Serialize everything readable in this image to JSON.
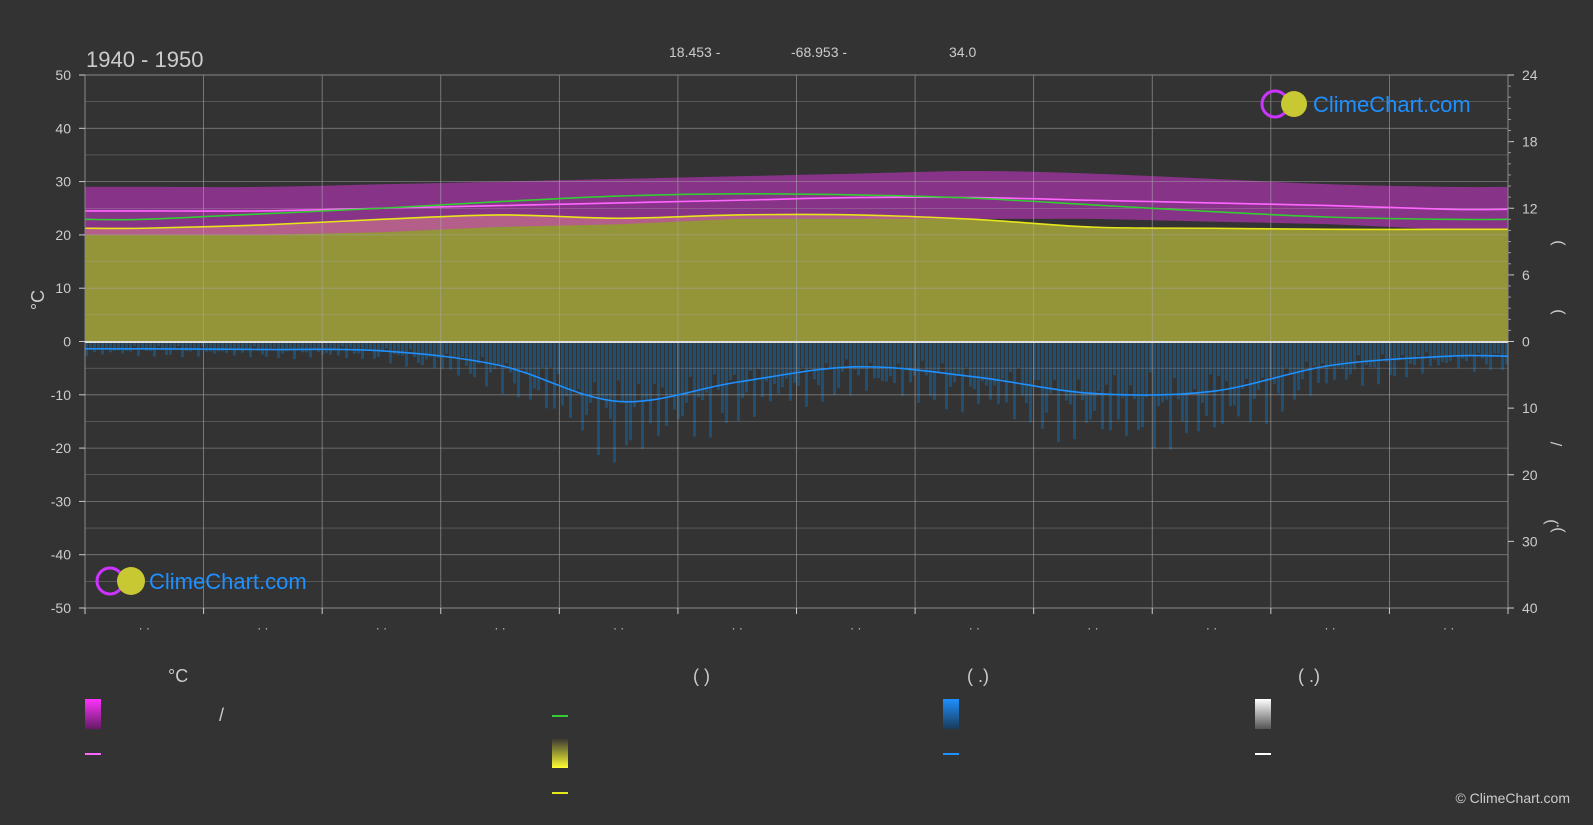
{
  "header": {
    "period": "1940 - 1950",
    "lat": "18.453 -",
    "lon": "-68.953 -",
    "elev": "34.0"
  },
  "colors": {
    "background": "#333333",
    "sunshine_area": "#a6a63a",
    "daylight_line": "#33cc33",
    "sunshine_line": "#e6e61a",
    "temp_band": "#cc33cc",
    "temp_mean_line": "#ff66ff",
    "rain_line": "#1e90ff",
    "rain_bars": "#1a5a8a",
    "logo_text": "#1e90ff"
  },
  "logo": {
    "text": "ClimeChart.com"
  },
  "copyright": "© ClimeChart.com",
  "chart_data": {
    "type": "area",
    "x": [
      1,
      2,
      3,
      4,
      5,
      6,
      7,
      8,
      9,
      10,
      11,
      12
    ],
    "x_tick_labels": [
      "· ·",
      "· ·",
      "· ·",
      "· ·",
      "· ·",
      "· ·",
      "· ·",
      "· ·",
      "· ·",
      "· ·",
      "· ·",
      "· ·"
    ],
    "left_axis": {
      "label": "°C",
      "ylim": [
        -50,
        50
      ],
      "ticks": [
        50,
        40,
        30,
        20,
        10,
        0,
        -10,
        -20,
        -30,
        -40,
        -50
      ]
    },
    "right_axis_top": {
      "ylim": [
        0,
        24
      ],
      "ticks": [
        24,
        18,
        12,
        6,
        0
      ]
    },
    "right_axis_bottom": {
      "ylim": [
        0,
        40
      ],
      "ticks": [
        0,
        10,
        20,
        30,
        40
      ]
    },
    "right_axis_glyphs": [
      ")",
      ")",
      "/",
      ")",
      "·",
      ")"
    ],
    "grid": true,
    "series": [
      {
        "key": "temp_max",
        "axis": "left",
        "values": [
          29,
          29,
          29.5,
          30,
          30.5,
          31,
          31.5,
          32,
          31.5,
          30.5,
          29.5,
          29
        ]
      },
      {
        "key": "temp_min",
        "axis": "left",
        "values": [
          20,
          20,
          20.5,
          21.5,
          22,
          23,
          23,
          23,
          23,
          22.5,
          22,
          21
        ]
      },
      {
        "key": "temp_mean",
        "axis": "left",
        "values": [
          24.5,
          24.5,
          25,
          25.5,
          26,
          26.5,
          27,
          27,
          26.5,
          26,
          25.5,
          24.8
        ]
      },
      {
        "key": "daylight",
        "axis": "right_top",
        "values": [
          11.0,
          11.5,
          12.0,
          12.6,
          13.1,
          13.3,
          13.2,
          12.9,
          12.3,
          11.7,
          11.2,
          11.0
        ]
      },
      {
        "key": "sunshine",
        "axis": "right_top",
        "values": [
          10.2,
          10.5,
          11.0,
          11.4,
          11.1,
          11.4,
          11.4,
          11.0,
          10.3,
          10.2,
          10.1,
          10.1
        ]
      },
      {
        "key": "rain",
        "axis": "right_bottom",
        "values": [
          1.1,
          1.2,
          1.4,
          3.6,
          9.0,
          6.1,
          3.8,
          5.3,
          7.8,
          7.5,
          3.6,
          2.2
        ]
      }
    ]
  },
  "legend": {
    "col1_title": "°C",
    "col1_sep": "/",
    "col2_title": "(          )",
    "col3_title": "(    .)",
    "col4_title": "(    .)"
  }
}
